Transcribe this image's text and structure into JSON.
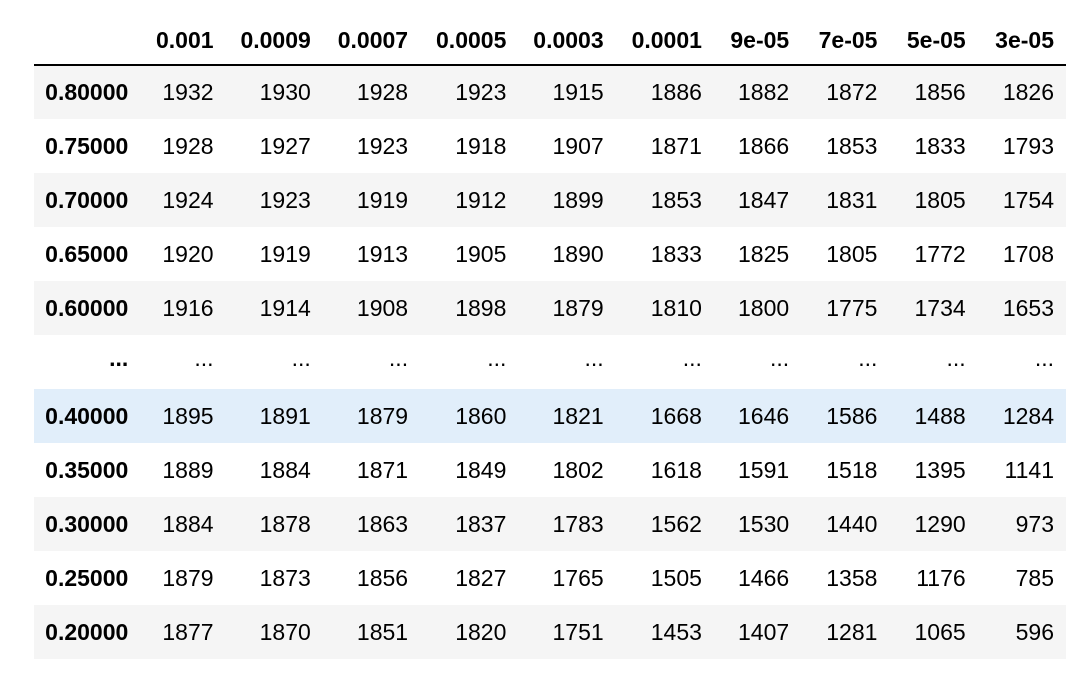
{
  "table": {
    "index_header": "",
    "columns": [
      "0.001",
      "0.0009",
      "0.0007",
      "0.0005",
      "0.0003",
      "0.0001",
      "9e-05",
      "7e-05",
      "5e-05",
      "3e-05"
    ],
    "rows": [
      {
        "index": "0.80000",
        "values": [
          "1932",
          "1930",
          "1928",
          "1923",
          "1915",
          "1886",
          "1882",
          "1872",
          "1856",
          "1826"
        ]
      },
      {
        "index": "0.75000",
        "values": [
          "1928",
          "1927",
          "1923",
          "1918",
          "1907",
          "1871",
          "1866",
          "1853",
          "1833",
          "1793"
        ]
      },
      {
        "index": "0.70000",
        "values": [
          "1924",
          "1923",
          "1919",
          "1912",
          "1899",
          "1853",
          "1847",
          "1831",
          "1805",
          "1754"
        ]
      },
      {
        "index": "0.65000",
        "values": [
          "1920",
          "1919",
          "1913",
          "1905",
          "1890",
          "1833",
          "1825",
          "1805",
          "1772",
          "1708"
        ]
      },
      {
        "index": "0.60000",
        "values": [
          "1916",
          "1914",
          "1908",
          "1898",
          "1879",
          "1810",
          "1800",
          "1775",
          "1734",
          "1653"
        ]
      },
      {
        "index": "...",
        "values": [
          "...",
          "...",
          "...",
          "...",
          "...",
          "...",
          "...",
          "...",
          "...",
          "..."
        ]
      },
      {
        "index": "0.40000",
        "values": [
          "1895",
          "1891",
          "1879",
          "1860",
          "1821",
          "1668",
          "1646",
          "1586",
          "1488",
          "1284"
        ]
      },
      {
        "index": "0.35000",
        "values": [
          "1889",
          "1884",
          "1871",
          "1849",
          "1802",
          "1618",
          "1591",
          "1518",
          "1395",
          "1141"
        ]
      },
      {
        "index": "0.30000",
        "values": [
          "1884",
          "1878",
          "1863",
          "1837",
          "1783",
          "1562",
          "1530",
          "1440",
          "1290",
          "973"
        ]
      },
      {
        "index": "0.25000",
        "values": [
          "1879",
          "1873",
          "1856",
          "1827",
          "1765",
          "1505",
          "1466",
          "1358",
          "1176",
          "785"
        ]
      },
      {
        "index": "0.20000",
        "values": [
          "1877",
          "1870",
          "1851",
          "1820",
          "1751",
          "1453",
          "1407",
          "1281",
          "1065",
          "596"
        ]
      }
    ],
    "hovered_row_index": 6,
    "colors": {
      "stripe": "#f5f5f5",
      "hover": "#e1eefa",
      "header_rule": "#000000"
    }
  }
}
